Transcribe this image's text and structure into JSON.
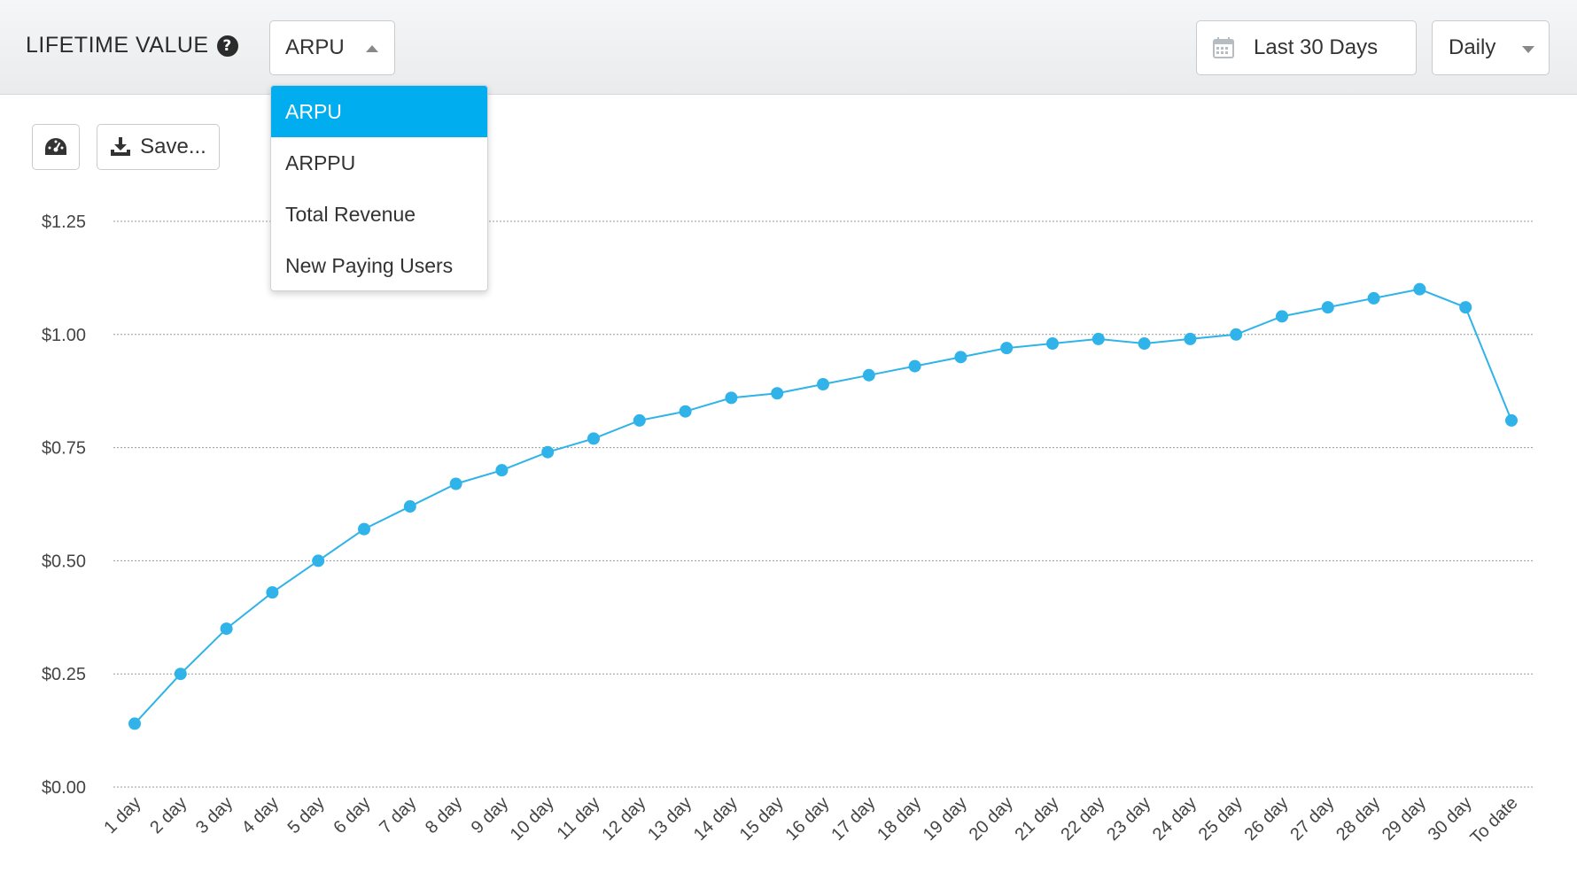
{
  "header": {
    "title": "LIFETIME VALUE",
    "metric_selected": "ARPU",
    "date_range": "Last 30 Days",
    "period": "Daily"
  },
  "dropdown": {
    "options": [
      "ARPU",
      "ARPPU",
      "Total Revenue",
      "New Paying Users"
    ],
    "active_index": 0
  },
  "toolbar": {
    "save_label": "Save..."
  },
  "colors": {
    "accent": "#00aeef",
    "line": "#2fb3e8",
    "grid": "#999999"
  },
  "icons": [
    "help-icon",
    "caret-up-icon",
    "calendar-icon",
    "caret-down-icon",
    "dashboard-gauge-icon",
    "download-icon"
  ],
  "chart_data": {
    "type": "line",
    "categories": [
      "1 day",
      "2 day",
      "3 day",
      "4 day",
      "5 day",
      "6 day",
      "7 day",
      "8 day",
      "9 day",
      "10 day",
      "11 day",
      "12 day",
      "13 day",
      "14 day",
      "15 day",
      "16 day",
      "17 day",
      "18 day",
      "19 day",
      "20 day",
      "21 day",
      "22 day",
      "23 day",
      "24 day",
      "25 day",
      "26 day",
      "27 day",
      "28 day",
      "29 day",
      "30 day",
      "To date"
    ],
    "series": [
      {
        "values": [
          0.14,
          0.25,
          0.35,
          0.43,
          0.5,
          0.57,
          0.62,
          0.67,
          0.7,
          0.74,
          0.77,
          0.81,
          0.83,
          0.86,
          0.87,
          0.89,
          0.91,
          0.93,
          0.95,
          0.97,
          0.98,
          0.99,
          0.98,
          0.99,
          1.0,
          1.04,
          1.06,
          1.08,
          1.1,
          1.06,
          0.81
        ]
      }
    ],
    "y_ticks": [
      "$0.00",
      "$0.25",
      "$0.50",
      "$0.75",
      "$1.00",
      "$1.25"
    ],
    "ylim": [
      0,
      1.25
    ],
    "grid": true,
    "legend": "none"
  }
}
